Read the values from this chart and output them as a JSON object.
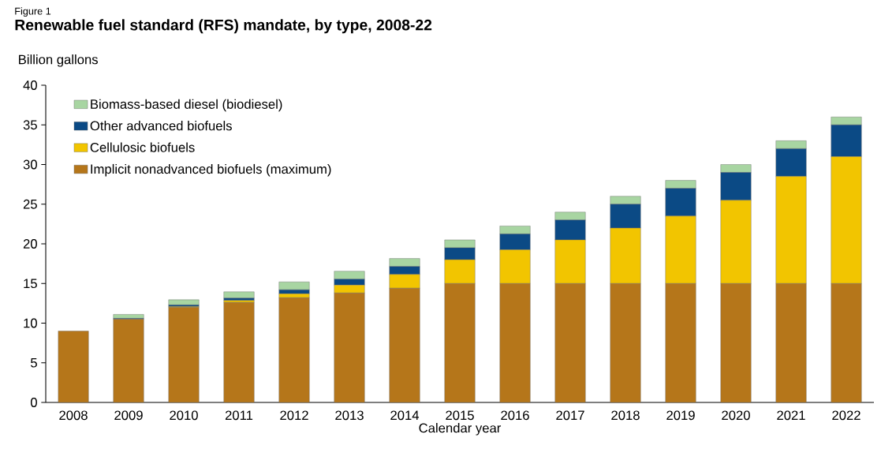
{
  "chart_data": {
    "type": "bar",
    "stacked": true,
    "annotations": [
      "Figure 1"
    ],
    "title": "Renewable fuel standard (RFS) mandate, by type, 2008-22",
    "ylabel": "Billion gallons",
    "xlabel": "Calendar year",
    "categories": [
      "2008",
      "2009",
      "2010",
      "2011",
      "2012",
      "2013",
      "2014",
      "2015",
      "2016",
      "2017",
      "2018",
      "2019",
      "2020",
      "2021",
      "2022"
    ],
    "series": [
      {
        "name": "Implicit nonadvanced biofuels (maximum)",
        "color": "#b5761a",
        "values": [
          9.0,
          10.5,
          12.0,
          12.6,
          13.2,
          13.8,
          14.4,
          15,
          15,
          15,
          15,
          15,
          15,
          15,
          15
        ]
      },
      {
        "name": "Cellulosic biofuels",
        "color": "#f2c500",
        "values": [
          0,
          0,
          0.1,
          0.25,
          0.5,
          1.0,
          1.75,
          3.0,
          4.25,
          5.5,
          7.0,
          8.5,
          10.5,
          13.5,
          16.0
        ]
      },
      {
        "name": "Other advanced biofuels",
        "color": "#0b4a85",
        "values": [
          0,
          0.1,
          0.2,
          0.3,
          0.5,
          0.75,
          1.0,
          1.5,
          2.0,
          2.5,
          3.0,
          3.5,
          3.5,
          3.5,
          4.0
        ]
      },
      {
        "name": "Biomass-based diesel (biodiesel)",
        "color": "#a8d5a2",
        "values": [
          0,
          0.5,
          0.65,
          0.8,
          1.0,
          1.0,
          1.0,
          1.0,
          1.0,
          1.0,
          1.0,
          1.0,
          1.0,
          1.0,
          1.0
        ]
      }
    ],
    "ylim": [
      0,
      40
    ],
    "yticks": [
      0,
      5,
      10,
      15,
      20,
      25,
      30,
      35,
      40
    ],
    "legend": "top left"
  }
}
